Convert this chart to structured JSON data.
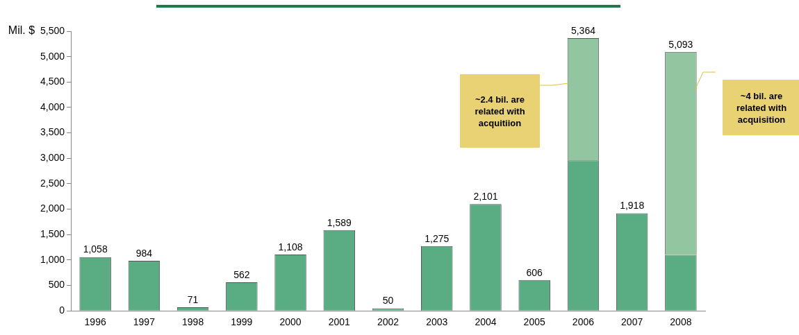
{
  "chart_data": {
    "type": "bar",
    "stacked": true,
    "ylabel": "Mil. $",
    "categories": [
      "1996",
      "1997",
      "1998",
      "1999",
      "2000",
      "2001",
      "2002",
      "2003",
      "2004",
      "2005",
      "2006",
      "2007",
      "2008"
    ],
    "series": [
      {
        "color": "#5aad82",
        "values": [
          1058,
          984,
          71,
          562,
          1108,
          1589,
          50,
          1275,
          2101,
          606,
          2960,
          1918,
          1100
        ]
      },
      {
        "color": "#92c6a0",
        "values": [
          null,
          null,
          null,
          null,
          null,
          null,
          null,
          null,
          null,
          null,
          2404,
          null,
          3993
        ]
      }
    ],
    "totals": [
      "1,058",
      "984",
      "71",
      "562",
      "1,108",
      "1,589",
      "50",
      "1,275",
      "2,101",
      "606",
      "5,364",
      "1,918",
      "5,093"
    ],
    "ylim": [
      0,
      5500
    ],
    "yticks": [
      0,
      500,
      {
        "value": 1000,
        "label": "1,000"
      },
      {
        "value": 1500,
        "label": "1,500"
      },
      {
        "value": 2000,
        "label": "2,000"
      },
      {
        "value": 2500,
        "label": "2,500"
      },
      {
        "value": 3000,
        "label": "3,000"
      },
      {
        "value": 3500,
        "label": "3,500"
      },
      {
        "value": 4000,
        "label": "4,000"
      },
      {
        "value": 4500,
        "label": "4,500"
      },
      {
        "value": 5000,
        "label": "5,000"
      },
      {
        "value": 5500,
        "label": "5,500"
      }
    ],
    "grid": false,
    "legend": false,
    "annotations": [
      "~2.4 bil. are related with acquitiion",
      "~4 bil. are related with acquisition"
    ]
  }
}
